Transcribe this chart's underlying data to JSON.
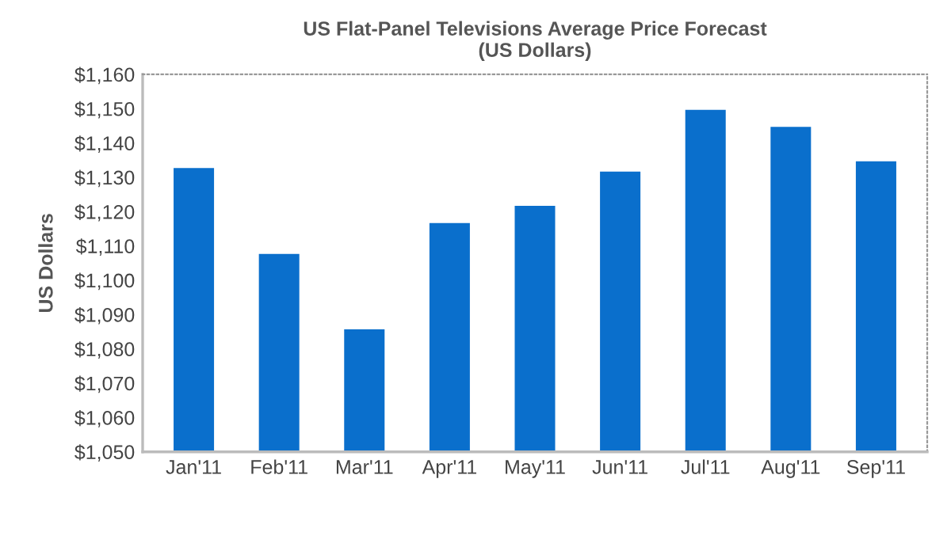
{
  "chart_data": {
    "type": "bar",
    "title": "US Flat-Panel Televisions Average Price Forecast\n(US Dollars)",
    "ylabel": "US Dollars",
    "categories": [
      "Jan'11",
      "Feb'11",
      "Mar'11",
      "Apr'11",
      "May'11",
      "Jun'11",
      "Jul'11",
      "Aug'11",
      "Sep'11"
    ],
    "values": [
      1133,
      1108,
      1086,
      1117,
      1122,
      1132,
      1150,
      1145,
      1135
    ],
    "color": "#0a6fcc",
    "ylim": [
      1050,
      1160
    ],
    "yticks": [
      {
        "value": 1050,
        "label": "$1,050"
      },
      {
        "value": 1060,
        "label": "$1,060"
      },
      {
        "value": 1070,
        "label": "$1,070"
      },
      {
        "value": 1080,
        "label": "$1,080"
      },
      {
        "value": 1090,
        "label": "$1,090"
      },
      {
        "value": 1100,
        "label": "$1,100"
      },
      {
        "value": 1110,
        "label": "$1,110"
      },
      {
        "value": 1120,
        "label": "$1,120"
      },
      {
        "value": 1130,
        "label": "$1,130"
      },
      {
        "value": 1140,
        "label": "$1,140"
      },
      {
        "value": 1150,
        "label": "$1,150"
      },
      {
        "value": 1160,
        "label": "$1,160"
      }
    ],
    "grid": false
  }
}
